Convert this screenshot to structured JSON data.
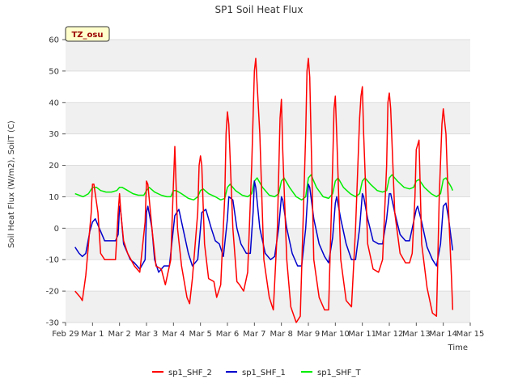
{
  "chart_data": {
    "type": "line",
    "title": "SP1 Soil Heat Flux",
    "xlabel": "Time",
    "ylabel": "Soil Heat Flux (W/m2), SoilT (C)",
    "site_label": "TZ_osu",
    "ylim": [
      -30,
      60
    ],
    "yticks": [
      -30,
      -20,
      -10,
      0,
      10,
      20,
      30,
      40,
      50,
      60
    ],
    "xlim": [
      0,
      15
    ],
    "xtick_values": [
      0,
      1,
      2,
      3,
      4,
      5,
      6,
      7,
      8,
      9,
      10,
      11,
      12,
      13,
      14,
      15
    ],
    "xtick_labels": [
      "Feb 29",
      "Mar 1",
      "Mar 2",
      "Mar 3",
      "Mar 4",
      "Mar 5",
      "Mar 6",
      "Mar 7",
      "Mar 8",
      "Mar 9",
      "Mar 10",
      "Mar 11",
      "Mar 12",
      "Mar 13",
      "Mar 14",
      "Mar 15"
    ],
    "x_unit_note": "x values are days after Feb 29",
    "grid": "horizontal bands",
    "legend_position": "bottom",
    "series": [
      {
        "name": "sp1_SHF_2",
        "color": "#ff0000",
        "x": [
          0.35,
          0.45,
          0.55,
          0.62,
          0.75,
          0.95,
          1.0,
          1.05,
          1.2,
          1.3,
          1.45,
          1.7,
          1.85,
          1.95,
          2.0,
          2.05,
          2.15,
          2.3,
          2.55,
          2.75,
          2.95,
          3.0,
          3.05,
          3.2,
          3.35,
          3.55,
          3.7,
          3.9,
          3.98,
          4.05,
          4.15,
          4.3,
          4.5,
          4.6,
          4.7,
          4.9,
          4.95,
          5.0,
          5.05,
          5.15,
          5.3,
          5.5,
          5.6,
          5.75,
          5.9,
          5.95,
          6.0,
          6.05,
          6.2,
          6.35,
          6.45,
          6.6,
          6.75,
          6.9,
          7.0,
          7.05,
          7.2,
          7.35,
          7.55,
          7.7,
          7.85,
          7.95,
          8.0,
          8.05,
          8.2,
          8.35,
          8.55,
          8.7,
          8.9,
          8.95,
          9.0,
          9.05,
          9.2,
          9.4,
          9.6,
          9.75,
          9.9,
          9.95,
          10.0,
          10.05,
          10.2,
          10.4,
          10.6,
          10.75,
          10.9,
          10.95,
          11.0,
          11.05,
          11.2,
          11.4,
          11.6,
          11.75,
          11.9,
          11.95,
          12.0,
          12.05,
          12.2,
          12.4,
          12.6,
          12.75,
          12.85,
          12.95,
          13.0,
          13.1,
          13.2,
          13.4,
          13.6,
          13.75,
          13.85,
          13.95,
          14.0,
          14.1,
          14.2,
          14.3,
          14.35
        ],
        "y": [
          -20,
          -21,
          -22,
          -23,
          -15,
          5,
          14,
          14,
          5,
          -8,
          -10,
          -10,
          -10,
          5,
          11,
          5,
          -4,
          -8,
          -12,
          -14,
          2,
          15,
          14,
          0,
          -12,
          -13,
          -18,
          -10,
          10,
          26,
          0,
          -12,
          -22,
          -24,
          -16,
          5,
          20,
          23,
          20,
          -5,
          -16,
          -17,
          -22,
          -18,
          10,
          30,
          37,
          33,
          0,
          -17,
          -18,
          -20,
          -14,
          20,
          50,
          54,
          30,
          -10,
          -22,
          -26,
          0,
          35,
          41,
          25,
          -10,
          -25,
          -30,
          -28,
          30,
          50,
          54,
          48,
          -10,
          -22,
          -26,
          -26,
          20,
          38,
          42,
          30,
          -10,
          -23,
          -25,
          0,
          35,
          42,
          45,
          30,
          -5,
          -13,
          -14,
          -10,
          20,
          40,
          43,
          38,
          5,
          -8,
          -11,
          -11,
          -8,
          10,
          25,
          28,
          -5,
          -19,
          -27,
          -28,
          10,
          33,
          38,
          30,
          5,
          -15,
          -26
        ]
      },
      {
        "name": "sp1_SHF_1",
        "color": "#0000cc",
        "x": [
          0.35,
          0.5,
          0.62,
          0.75,
          0.9,
          1.0,
          1.1,
          1.25,
          1.45,
          1.7,
          1.85,
          1.95,
          2.0,
          2.05,
          2.15,
          2.3,
          2.4,
          2.55,
          2.75,
          2.95,
          3.0,
          3.05,
          3.2,
          3.3,
          3.45,
          3.65,
          3.85,
          4.0,
          4.05,
          4.2,
          4.35,
          4.55,
          4.7,
          4.9,
          5.0,
          5.05,
          5.2,
          5.4,
          5.55,
          5.7,
          5.85,
          6.0,
          6.05,
          6.2,
          6.35,
          6.5,
          6.7,
          6.85,
          6.95,
          7.0,
          7.05,
          7.2,
          7.4,
          7.6,
          7.75,
          7.9,
          8.0,
          8.05,
          8.2,
          8.4,
          8.6,
          8.75,
          8.9,
          9.0,
          9.05,
          9.2,
          9.4,
          9.6,
          9.75,
          9.9,
          10.0,
          10.05,
          10.2,
          10.4,
          10.6,
          10.75,
          10.9,
          11.0,
          11.05,
          11.2,
          11.4,
          11.6,
          11.75,
          11.9,
          12.0,
          12.05,
          12.2,
          12.4,
          12.6,
          12.75,
          12.9,
          13.0,
          13.05,
          13.2,
          13.4,
          13.6,
          13.75,
          13.9,
          14.0,
          14.1,
          14.2,
          14.35
        ],
        "y": [
          -6,
          -8,
          -9,
          -8,
          -1,
          2,
          3,
          0,
          -4,
          -4,
          -4,
          -2,
          7,
          5,
          -5,
          -8,
          -10,
          -11,
          -13,
          -10,
          5,
          7,
          0,
          -10,
          -14,
          -12,
          -12,
          0,
          4,
          6,
          0,
          -8,
          -12,
          -10,
          0,
          5,
          6,
          0,
          -4,
          -5,
          -9,
          3,
          10,
          9,
          0,
          -5,
          -8,
          -8,
          5,
          15,
          13,
          0,
          -8,
          -10,
          -9,
          0,
          10,
          9,
          0,
          -8,
          -12,
          -12,
          0,
          14,
          13,
          3,
          -5,
          -9,
          -11,
          -3,
          8,
          10,
          3,
          -5,
          -10,
          -10,
          0,
          11,
          10,
          3,
          -4,
          -5,
          -5,
          3,
          11,
          11,
          5,
          -2,
          -4,
          -4,
          2,
          6,
          7,
          2,
          -6,
          -10,
          -12,
          -5,
          7,
          8,
          3,
          -7
        ]
      },
      {
        "name": "sp1_SHF_T",
        "color": "#00ee00",
        "x": [
          0.35,
          0.5,
          0.65,
          0.85,
          1.0,
          1.15,
          1.3,
          1.5,
          1.7,
          1.9,
          2.0,
          2.1,
          2.3,
          2.5,
          2.7,
          2.9,
          3.0,
          3.1,
          3.3,
          3.55,
          3.75,
          3.9,
          4.0,
          4.1,
          4.3,
          4.55,
          4.75,
          4.9,
          5.0,
          5.1,
          5.3,
          5.55,
          5.75,
          5.9,
          6.0,
          6.1,
          6.3,
          6.55,
          6.75,
          6.9,
          7.0,
          7.1,
          7.3,
          7.55,
          7.75,
          7.9,
          8.0,
          8.1,
          8.3,
          8.55,
          8.75,
          8.9,
          9.0,
          9.1,
          9.3,
          9.55,
          9.75,
          9.9,
          10.0,
          10.1,
          10.3,
          10.55,
          10.75,
          10.9,
          11.0,
          11.1,
          11.3,
          11.55,
          11.75,
          11.9,
          12.0,
          12.1,
          12.3,
          12.55,
          12.75,
          12.9,
          13.0,
          13.1,
          13.3,
          13.55,
          13.75,
          13.9,
          14.0,
          14.1,
          14.3,
          14.35
        ],
        "y": [
          11,
          10.5,
          10,
          11,
          13,
          13,
          12,
          11.5,
          11.5,
          12,
          13,
          13,
          12,
          11,
          10.5,
          10.5,
          12,
          13,
          11.5,
          10.5,
          10,
          10,
          12,
          12,
          11,
          9.5,
          9,
          10,
          12,
          12.5,
          11,
          10,
          9,
          9.5,
          13,
          14,
          12,
          10.5,
          10,
          11,
          15,
          16,
          13,
          10.5,
          10,
          11,
          15,
          16,
          13,
          10,
          9,
          10,
          16,
          17,
          13,
          10,
          9.5,
          11,
          15,
          16,
          13,
          11,
          10,
          11,
          15,
          16,
          14,
          12,
          11.5,
          12,
          16,
          17,
          15,
          13,
          12.5,
          13,
          15,
          15.5,
          13,
          11,
          10,
          11,
          15.5,
          16,
          13,
          12
        ]
      }
    ]
  }
}
